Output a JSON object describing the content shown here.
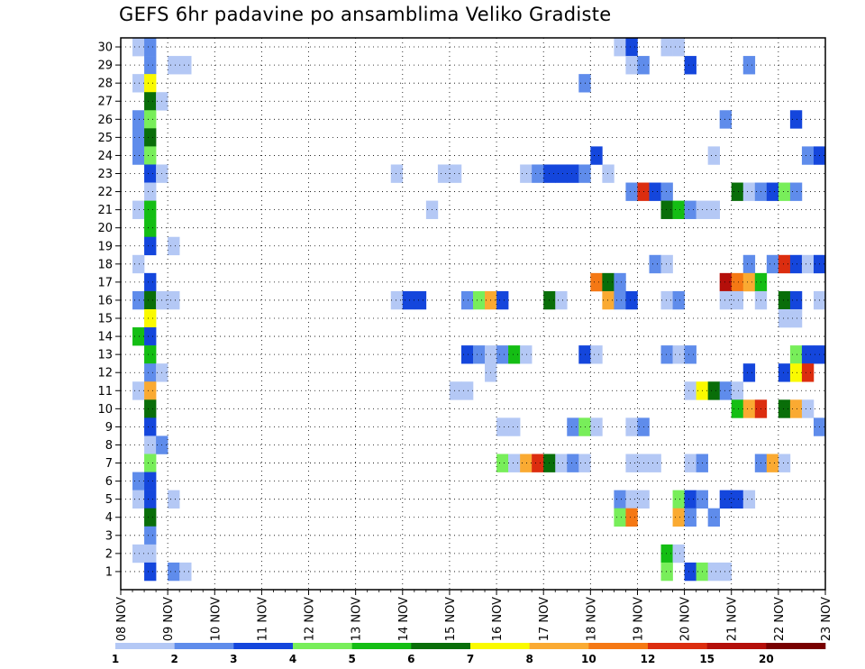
{
  "chart_data": {
    "type": "heatmap",
    "title": "GEFS 6hr padavine po ansamblima Veliko Gradiste",
    "xlabel": "",
    "ylabel": "",
    "x_ticks": [
      "08 NOV",
      "09 NOV",
      "10 NOV",
      "11 NOV",
      "12 NOV",
      "13 NOV",
      "14 NOV",
      "15 NOV",
      "16 NOV",
      "17 NOV",
      "18 NOV",
      "19 NOV",
      "20 NOV",
      "21 NOV",
      "22 NOV",
      "23 NOV"
    ],
    "y_ticks": [
      1,
      2,
      3,
      4,
      5,
      6,
      7,
      8,
      9,
      10,
      11,
      12,
      13,
      14,
      15,
      16,
      17,
      18,
      19,
      20,
      21,
      22,
      23,
      24,
      25,
      26,
      27,
      28,
      29,
      30
    ],
    "x_range_days": [
      0,
      15
    ],
    "y_range": [
      0,
      30
    ],
    "grid": true,
    "colorbar": {
      "levels": [
        "1",
        "2",
        "3",
        "4",
        "5",
        "6",
        "7",
        "8",
        "10",
        "12",
        "15",
        "20"
      ],
      "colors": [
        "#b4c8f5",
        "#5f8ceb",
        "#1446dc",
        "#78ee5a",
        "#14be14",
        "#096e09",
        "#fafa00",
        "#faaa32",
        "#f57814",
        "#dc2d0f",
        "#b40f0a",
        "#780000"
      ]
    },
    "cells": [
      {
        "member": 30,
        "step": 1,
        "bin": 0
      },
      {
        "member": 30,
        "step": 2,
        "bin": 1
      },
      {
        "member": 30,
        "step": 42,
        "bin": 0
      },
      {
        "member": 30,
        "step": 43,
        "bin": 2
      },
      {
        "member": 30,
        "step": 46,
        "bin": 0
      },
      {
        "member": 30,
        "step": 47,
        "bin": 0
      },
      {
        "member": 29,
        "step": 2,
        "bin": 1
      },
      {
        "member": 29,
        "step": 4,
        "bin": 0
      },
      {
        "member": 29,
        "step": 5,
        "bin": 0
      },
      {
        "member": 29,
        "step": 43,
        "bin": 0
      },
      {
        "member": 29,
        "step": 44,
        "bin": 1
      },
      {
        "member": 29,
        "step": 48,
        "bin": 2
      },
      {
        "member": 29,
        "step": 53,
        "bin": 1
      },
      {
        "member": 28,
        "step": 1,
        "bin": 0
      },
      {
        "member": 28,
        "step": 2,
        "bin": 6
      },
      {
        "member": 28,
        "step": 39,
        "bin": 1
      },
      {
        "member": 27,
        "step": 2,
        "bin": 5
      },
      {
        "member": 27,
        "step": 3,
        "bin": 0
      },
      {
        "member": 26,
        "step": 1,
        "bin": 1
      },
      {
        "member": 26,
        "step": 2,
        "bin": 3
      },
      {
        "member": 26,
        "step": 51,
        "bin": 1
      },
      {
        "member": 26,
        "step": 57,
        "bin": 2
      },
      {
        "member": 25,
        "step": 1,
        "bin": 1
      },
      {
        "member": 25,
        "step": 2,
        "bin": 5
      },
      {
        "member": 24,
        "step": 1,
        "bin": 1
      },
      {
        "member": 24,
        "step": 2,
        "bin": 3
      },
      {
        "member": 24,
        "step": 40,
        "bin": 2
      },
      {
        "member": 24,
        "step": 50,
        "bin": 0
      },
      {
        "member": 24,
        "step": 58,
        "bin": 1
      },
      {
        "member": 24,
        "step": 59,
        "bin": 2
      },
      {
        "member": 23,
        "step": 2,
        "bin": 2
      },
      {
        "member": 23,
        "step": 3,
        "bin": 0
      },
      {
        "member": 23,
        "step": 23,
        "bin": 0
      },
      {
        "member": 23,
        "step": 27,
        "bin": 0
      },
      {
        "member": 23,
        "step": 28,
        "bin": 0
      },
      {
        "member": 23,
        "step": 34,
        "bin": 0
      },
      {
        "member": 23,
        "step": 35,
        "bin": 1
      },
      {
        "member": 23,
        "step": 36,
        "bin": 2
      },
      {
        "member": 23,
        "step": 37,
        "bin": 2
      },
      {
        "member": 23,
        "step": 38,
        "bin": 2
      },
      {
        "member": 23,
        "step": 39,
        "bin": 1
      },
      {
        "member": 23,
        "step": 41,
        "bin": 0
      },
      {
        "member": 22,
        "step": 2,
        "bin": 0
      },
      {
        "member": 22,
        "step": 43,
        "bin": 1
      },
      {
        "member": 22,
        "step": 44,
        "bin": 9
      },
      {
        "member": 22,
        "step": 45,
        "bin": 2
      },
      {
        "member": 22,
        "step": 46,
        "bin": 1
      },
      {
        "member": 22,
        "step": 52,
        "bin": 5
      },
      {
        "member": 22,
        "step": 53,
        "bin": 0
      },
      {
        "member": 22,
        "step": 54,
        "bin": 1
      },
      {
        "member": 22,
        "step": 55,
        "bin": 2
      },
      {
        "member": 22,
        "step": 56,
        "bin": 3
      },
      {
        "member": 22,
        "step": 57,
        "bin": 1
      },
      {
        "member": 21,
        "step": 1,
        "bin": 0
      },
      {
        "member": 21,
        "step": 2,
        "bin": 4
      },
      {
        "member": 21,
        "step": 26,
        "bin": 0
      },
      {
        "member": 21,
        "step": 46,
        "bin": 5
      },
      {
        "member": 21,
        "step": 47,
        "bin": 4
      },
      {
        "member": 21,
        "step": 48,
        "bin": 1
      },
      {
        "member": 21,
        "step": 49,
        "bin": 0
      },
      {
        "member": 21,
        "step": 50,
        "bin": 0
      },
      {
        "member": 20,
        "step": 2,
        "bin": 4
      },
      {
        "member": 19,
        "step": 2,
        "bin": 2
      },
      {
        "member": 19,
        "step": 4,
        "bin": 0
      },
      {
        "member": 18,
        "step": 1,
        "bin": 0
      },
      {
        "member": 18,
        "step": 45,
        "bin": 1
      },
      {
        "member": 18,
        "step": 46,
        "bin": 0
      },
      {
        "member": 18,
        "step": 53,
        "bin": 1
      },
      {
        "member": 18,
        "step": 55,
        "bin": 1
      },
      {
        "member": 18,
        "step": 56,
        "bin": 9
      },
      {
        "member": 18,
        "step": 57,
        "bin": 2
      },
      {
        "member": 18,
        "step": 58,
        "bin": 0
      },
      {
        "member": 18,
        "step": 59,
        "bin": 2
      },
      {
        "member": 17,
        "step": 2,
        "bin": 2
      },
      {
        "member": 17,
        "step": 40,
        "bin": 8
      },
      {
        "member": 17,
        "step": 41,
        "bin": 5
      },
      {
        "member": 17,
        "step": 42,
        "bin": 1
      },
      {
        "member": 17,
        "step": 51,
        "bin": 10
      },
      {
        "member": 17,
        "step": 52,
        "bin": 8
      },
      {
        "member": 17,
        "step": 53,
        "bin": 7
      },
      {
        "member": 17,
        "step": 54,
        "bin": 4
      },
      {
        "member": 16,
        "step": 1,
        "bin": 1
      },
      {
        "member": 16,
        "step": 2,
        "bin": 5
      },
      {
        "member": 16,
        "step": 3,
        "bin": 0
      },
      {
        "member": 16,
        "step": 4,
        "bin": 0
      },
      {
        "member": 16,
        "step": 23,
        "bin": 0
      },
      {
        "member": 16,
        "step": 24,
        "bin": 2
      },
      {
        "member": 16,
        "step": 25,
        "bin": 2
      },
      {
        "member": 16,
        "step": 29,
        "bin": 1
      },
      {
        "member": 16,
        "step": 30,
        "bin": 3
      },
      {
        "member": 16,
        "step": 31,
        "bin": 7
      },
      {
        "member": 16,
        "step": 32,
        "bin": 2
      },
      {
        "member": 16,
        "step": 36,
        "bin": 5
      },
      {
        "member": 16,
        "step": 37,
        "bin": 0
      },
      {
        "member": 16,
        "step": 41,
        "bin": 7
      },
      {
        "member": 16,
        "step": 42,
        "bin": 1
      },
      {
        "member": 16,
        "step": 43,
        "bin": 2
      },
      {
        "member": 16,
        "step": 46,
        "bin": 0
      },
      {
        "member": 16,
        "step": 47,
        "bin": 1
      },
      {
        "member": 16,
        "step": 51,
        "bin": 0
      },
      {
        "member": 16,
        "step": 52,
        "bin": 0
      },
      {
        "member": 16,
        "step": 54,
        "bin": 0
      },
      {
        "member": 16,
        "step": 56,
        "bin": 5
      },
      {
        "member": 16,
        "step": 57,
        "bin": 2
      },
      {
        "member": 16,
        "step": 59,
        "bin": 0
      },
      {
        "member": 15,
        "step": 2,
        "bin": 6
      },
      {
        "member": 15,
        "step": 56,
        "bin": 0
      },
      {
        "member": 15,
        "step": 57,
        "bin": 0
      },
      {
        "member": 14,
        "step": 1,
        "bin": 4
      },
      {
        "member": 14,
        "step": 2,
        "bin": 2
      },
      {
        "member": 13,
        "step": 2,
        "bin": 4
      },
      {
        "member": 13,
        "step": 29,
        "bin": 2
      },
      {
        "member": 13,
        "step": 30,
        "bin": 1
      },
      {
        "member": 13,
        "step": 31,
        "bin": 0
      },
      {
        "member": 13,
        "step": 32,
        "bin": 1
      },
      {
        "member": 13,
        "step": 33,
        "bin": 4
      },
      {
        "member": 13,
        "step": 34,
        "bin": 0
      },
      {
        "member": 13,
        "step": 39,
        "bin": 2
      },
      {
        "member": 13,
        "step": 40,
        "bin": 0
      },
      {
        "member": 13,
        "step": 46,
        "bin": 1
      },
      {
        "member": 13,
        "step": 47,
        "bin": 0
      },
      {
        "member": 13,
        "step": 48,
        "bin": 1
      },
      {
        "member": 13,
        "step": 57,
        "bin": 3
      },
      {
        "member": 13,
        "step": 58,
        "bin": 2
      },
      {
        "member": 13,
        "step": 59,
        "bin": 2
      },
      {
        "member": 12,
        "step": 2,
        "bin": 1
      },
      {
        "member": 12,
        "step": 3,
        "bin": 0
      },
      {
        "member": 12,
        "step": 31,
        "bin": 0
      },
      {
        "member": 12,
        "step": 53,
        "bin": 2
      },
      {
        "member": 12,
        "step": 56,
        "bin": 2
      },
      {
        "member": 12,
        "step": 57,
        "bin": 6
      },
      {
        "member": 12,
        "step": 58,
        "bin": 9
      },
      {
        "member": 11,
        "step": 1,
        "bin": 0
      },
      {
        "member": 11,
        "step": 2,
        "bin": 7
      },
      {
        "member": 11,
        "step": 28,
        "bin": 0
      },
      {
        "member": 11,
        "step": 29,
        "bin": 0
      },
      {
        "member": 11,
        "step": 48,
        "bin": 0
      },
      {
        "member": 11,
        "step": 49,
        "bin": 6
      },
      {
        "member": 11,
        "step": 50,
        "bin": 5
      },
      {
        "member": 11,
        "step": 51,
        "bin": 1
      },
      {
        "member": 11,
        "step": 52,
        "bin": 0
      },
      {
        "member": 10,
        "step": 2,
        "bin": 5
      },
      {
        "member": 10,
        "step": 52,
        "bin": 4
      },
      {
        "member": 10,
        "step": 53,
        "bin": 7
      },
      {
        "member": 10,
        "step": 54,
        "bin": 9
      },
      {
        "member": 10,
        "step": 56,
        "bin": 5
      },
      {
        "member": 10,
        "step": 57,
        "bin": 7
      },
      {
        "member": 10,
        "step": 58,
        "bin": 0
      },
      {
        "member": 9,
        "step": 2,
        "bin": 2
      },
      {
        "member": 9,
        "step": 32,
        "bin": 0
      },
      {
        "member": 9,
        "step": 33,
        "bin": 0
      },
      {
        "member": 9,
        "step": 38,
        "bin": 1
      },
      {
        "member": 9,
        "step": 39,
        "bin": 3
      },
      {
        "member": 9,
        "step": 40,
        "bin": 0
      },
      {
        "member": 9,
        "step": 43,
        "bin": 0
      },
      {
        "member": 9,
        "step": 44,
        "bin": 1
      },
      {
        "member": 9,
        "step": 59,
        "bin": 1
      },
      {
        "member": 8,
        "step": 2,
        "bin": 0
      },
      {
        "member": 8,
        "step": 3,
        "bin": 1
      },
      {
        "member": 7,
        "step": 2,
        "bin": 3
      },
      {
        "member": 7,
        "step": 32,
        "bin": 3
      },
      {
        "member": 7,
        "step": 33,
        "bin": 0
      },
      {
        "member": 7,
        "step": 34,
        "bin": 7
      },
      {
        "member": 7,
        "step": 35,
        "bin": 9
      },
      {
        "member": 7,
        "step": 36,
        "bin": 5
      },
      {
        "member": 7,
        "step": 37,
        "bin": 0
      },
      {
        "member": 7,
        "step": 38,
        "bin": 1
      },
      {
        "member": 7,
        "step": 39,
        "bin": 0
      },
      {
        "member": 7,
        "step": 43,
        "bin": 0
      },
      {
        "member": 7,
        "step": 44,
        "bin": 0
      },
      {
        "member": 7,
        "step": 45,
        "bin": 0
      },
      {
        "member": 7,
        "step": 48,
        "bin": 0
      },
      {
        "member": 7,
        "step": 49,
        "bin": 1
      },
      {
        "member": 7,
        "step": 54,
        "bin": 1
      },
      {
        "member": 7,
        "step": 55,
        "bin": 7
      },
      {
        "member": 7,
        "step": 56,
        "bin": 0
      },
      {
        "member": 6,
        "step": 1,
        "bin": 1
      },
      {
        "member": 6,
        "step": 2,
        "bin": 2
      },
      {
        "member": 5,
        "step": 1,
        "bin": 0
      },
      {
        "member": 5,
        "step": 2,
        "bin": 2
      },
      {
        "member": 5,
        "step": 4,
        "bin": 0
      },
      {
        "member": 5,
        "step": 42,
        "bin": 1
      },
      {
        "member": 5,
        "step": 43,
        "bin": 0
      },
      {
        "member": 5,
        "step": 44,
        "bin": 0
      },
      {
        "member": 5,
        "step": 47,
        "bin": 3
      },
      {
        "member": 5,
        "step": 48,
        "bin": 2
      },
      {
        "member": 5,
        "step": 49,
        "bin": 1
      },
      {
        "member": 5,
        "step": 51,
        "bin": 2
      },
      {
        "member": 5,
        "step": 52,
        "bin": 2
      },
      {
        "member": 5,
        "step": 53,
        "bin": 0
      },
      {
        "member": 4,
        "step": 2,
        "bin": 5
      },
      {
        "member": 4,
        "step": 42,
        "bin": 3
      },
      {
        "member": 4,
        "step": 43,
        "bin": 8
      },
      {
        "member": 4,
        "step": 47,
        "bin": 7
      },
      {
        "member": 4,
        "step": 48,
        "bin": 1
      },
      {
        "member": 4,
        "step": 50,
        "bin": 1
      },
      {
        "member": 3,
        "step": 2,
        "bin": 1
      },
      {
        "member": 2,
        "step": 1,
        "bin": 0
      },
      {
        "member": 2,
        "step": 2,
        "bin": 0
      },
      {
        "member": 2,
        "step": 46,
        "bin": 4
      },
      {
        "member": 2,
        "step": 47,
        "bin": 0
      },
      {
        "member": 1,
        "step": 2,
        "bin": 2
      },
      {
        "member": 1,
        "step": 4,
        "bin": 1
      },
      {
        "member": 1,
        "step": 5,
        "bin": 0
      },
      {
        "member": 1,
        "step": 46,
        "bin": 3
      },
      {
        "member": 1,
        "step": 48,
        "bin": 2
      },
      {
        "member": 1,
        "step": 49,
        "bin": 3
      },
      {
        "member": 1,
        "step": 50,
        "bin": 0
      },
      {
        "member": 1,
        "step": 51,
        "bin": 0
      }
    ]
  }
}
